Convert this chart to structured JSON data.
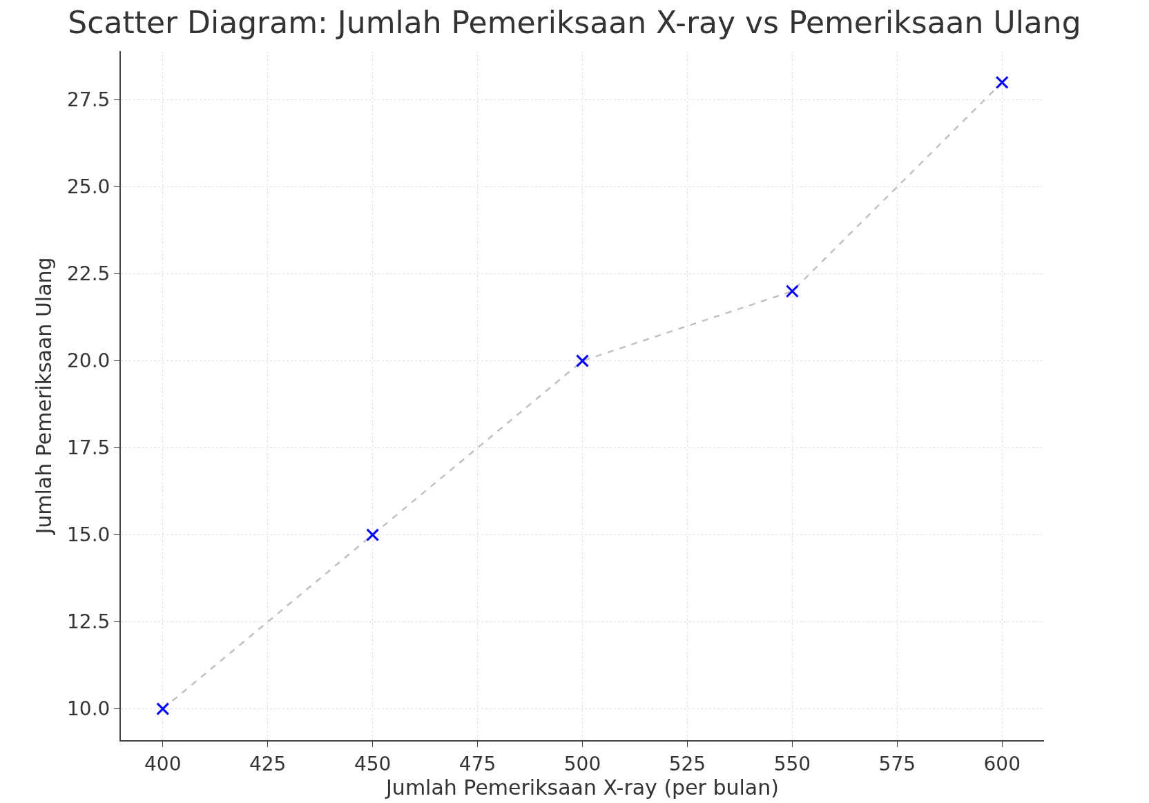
{
  "chart_data": {
    "type": "scatter",
    "title": "Scatter Diagram: Jumlah Pemeriksaan X-ray vs Pemeriksaan Ulang",
    "xlabel": "Jumlah Pemeriksaan X-ray (per bulan)",
    "ylabel": "Jumlah Pemeriksaan Ulang",
    "x": [
      400,
      450,
      500,
      550,
      600
    ],
    "series": [
      {
        "type": "line",
        "color": "#c0c0c0",
        "line_style": "dashed",
        "marker": "none",
        "values": [
          10,
          15,
          20,
          22,
          28
        ]
      },
      {
        "color": "#0000ff",
        "marker": "cross",
        "values": [
          10,
          15,
          20,
          22,
          28
        ]
      }
    ],
    "xlim": [
      390,
      610
    ],
    "xticks": [
      400,
      425,
      450,
      475,
      500,
      525,
      550,
      575,
      600
    ],
    "ylim": [
      9.1,
      28.9
    ],
    "yticks": [
      {
        "value": 10,
        "label": "10.0"
      },
      {
        "value": 12.5,
        "label": "12.5"
      },
      {
        "value": 15,
        "label": "15.0"
      },
      {
        "value": 17.5,
        "label": "17.5"
      },
      {
        "value": 20,
        "label": "20.0"
      },
      {
        "value": 22.5,
        "label": "22.5"
      },
      {
        "value": 25,
        "label": "25.0"
      },
      {
        "value": 27.5,
        "label": "27.5"
      }
    ],
    "grid": true,
    "legend": false
  }
}
